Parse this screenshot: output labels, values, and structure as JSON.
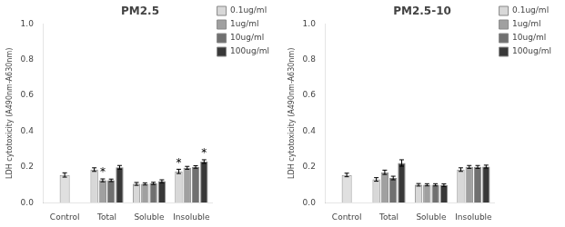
{
  "chart_data": [
    {
      "type": "bar",
      "title": "PM2.5",
      "categories": [
        "Control",
        "Total",
        "Soluble",
        "Insoluble"
      ],
      "ylabel": "LDH cytotoxicity (A490nm-A630nm)",
      "ylim": [
        0.0,
        1.0
      ],
      "yticks": [
        {
          "value": 0.0,
          "label": "0.0"
        },
        0.2,
        0.4,
        0.6,
        0.8,
        {
          "value": 1.0,
          "label": "1.0"
        }
      ],
      "grid": false,
      "legend": "upper right",
      "series": [
        {
          "color": "#e0e0e0",
          "values": [
            0.155,
            null,
            null,
            null
          ],
          "errors": [
            0.012,
            null,
            null,
            null
          ]
        },
        {
          "name": "0.1ug/ml",
          "color": "#d8d8d8",
          "values": [
            null,
            0.185,
            0.105,
            0.175
          ],
          "errors": [
            null,
            0.01,
            0.008,
            0.012
          ]
        },
        {
          "name": "1ug/ml",
          "color": "#a0a0a0",
          "values": [
            null,
            0.125,
            0.105,
            0.195
          ],
          "errors": [
            null,
            0.008,
            0.006,
            0.008
          ]
        },
        {
          "name": "10ug/ml",
          "color": "#707070",
          "values": [
            null,
            0.125,
            0.108,
            0.2
          ],
          "errors": [
            null,
            0.007,
            0.006,
            0.007
          ]
        },
        {
          "name": "100ug/ml",
          "color": "#383838",
          "values": [
            null,
            0.198,
            0.12,
            0.23
          ],
          "errors": [
            null,
            0.01,
            0.008,
            0.01
          ]
        }
      ],
      "annotations": [
        {
          "text": "*",
          "category": "Total",
          "series": "1ug/ml"
        },
        {
          "text": "*",
          "category": "Insoluble",
          "series": "0.1ug/ml"
        },
        {
          "text": "*",
          "category": "Insoluble",
          "series": "100ug/ml"
        }
      ]
    },
    {
      "type": "bar",
      "title": "PM2.5-10",
      "categories": [
        "Control",
        "Total",
        "Soluble",
        "Insoluble"
      ],
      "ylabel": "LDH cytotoxicity (A490nm-A630nm)",
      "ylim": [
        0.0,
        1.0
      ],
      "yticks": [
        {
          "value": 0.0,
          "label": "0.0"
        },
        0.2,
        0.4,
        0.6,
        0.8,
        {
          "value": 1.0,
          "label": "1.0"
        }
      ],
      "grid": false,
      "legend": "upper right",
      "series": [
        {
          "color": "#e0e0e0",
          "values": [
            0.155,
            null,
            null,
            null
          ],
          "errors": [
            0.01,
            null,
            null,
            null
          ]
        },
        {
          "name": "0.1ug/ml",
          "color": "#d8d8d8",
          "values": [
            null,
            0.13,
            0.1,
            0.185
          ],
          "errors": [
            null,
            0.01,
            0.007,
            0.01
          ]
        },
        {
          "name": "1ug/ml",
          "color": "#a0a0a0",
          "values": [
            null,
            0.17,
            0.1,
            0.2
          ],
          "errors": [
            null,
            0.012,
            0.006,
            0.008
          ]
        },
        {
          "name": "10ug/ml",
          "color": "#707070",
          "values": [
            null,
            0.138,
            0.1,
            0.2
          ],
          "errors": [
            null,
            0.01,
            0.006,
            0.008
          ]
        },
        {
          "name": "100ug/ml",
          "color": "#383838",
          "values": [
            null,
            0.222,
            0.098,
            0.202
          ],
          "errors": [
            null,
            0.018,
            0.007,
            0.008
          ]
        }
      ]
    }
  ]
}
